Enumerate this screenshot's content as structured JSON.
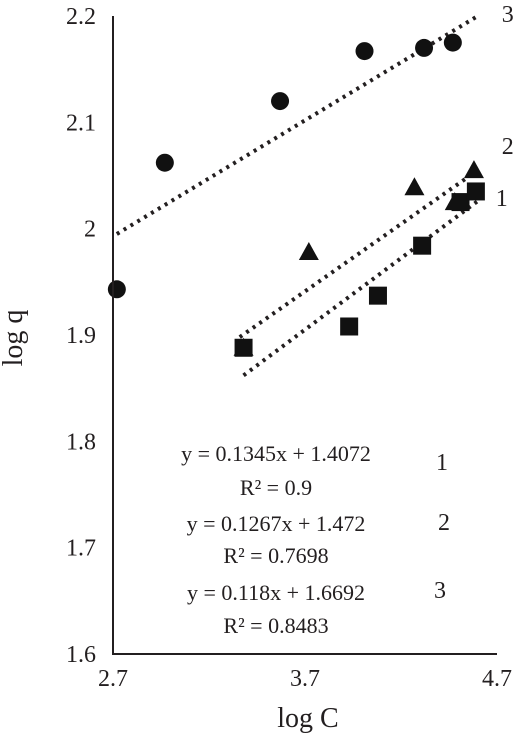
{
  "chart_data": {
    "type": "scatter",
    "xlabel": "log C",
    "ylabel": "log q",
    "xlim": [
      2.7,
      4.7
    ],
    "ylim": [
      1.6,
      2.2
    ],
    "xticks": [
      "2.7",
      "3.7",
      "4.7"
    ],
    "yticks": [
      "1.6",
      "1.7",
      "1.8",
      "1.9",
      "2",
      "2.1",
      "2.2"
    ],
    "grid": false,
    "legend": "none",
    "series": [
      {
        "label": "1",
        "marker": "square",
        "x": [
          3.38,
          3.93,
          4.08,
          4.31,
          4.51,
          4.59
        ],
        "y": [
          1.888,
          1.908,
          1.937,
          1.984,
          2.025,
          2.035
        ],
        "trendline": {
          "x": [
            3.38,
            4.6
          ],
          "y": [
            1.862,
            2.026
          ]
        }
      },
      {
        "label": "2",
        "marker": "triangle",
        "x": [
          3.38,
          3.72,
          4.27,
          4.48,
          4.58
        ],
        "y": [
          1.888,
          1.978,
          2.039,
          2.025,
          2.055
        ],
        "trendline": {
          "x": [
            3.36,
            4.6
          ],
          "y": [
            1.898,
            2.055
          ]
        }
      },
      {
        "label": "3",
        "marker": "circle",
        "x": [
          2.72,
          2.97,
          3.57,
          4.01,
          4.32,
          4.47
        ],
        "y": [
          1.943,
          2.062,
          2.12,
          2.167,
          2.17,
          2.175
        ],
        "trendline": {
          "x": [
            2.72,
            4.6
          ],
          "y": [
            1.995,
            2.2
          ]
        }
      }
    ],
    "annotations": [
      {
        "equation": "y = 0.1345x + 1.4072",
        "r2": "R² = 0.9",
        "number": "1"
      },
      {
        "equation": "y = 0.1267x + 1.472",
        "r2": "R² = 0.7698",
        "number": "2"
      },
      {
        "equation": "y = 0.118x + 1.6692",
        "r2": "R² = 0.8483",
        "number": "3"
      }
    ],
    "colors": {
      "ink": "#231f20",
      "marker": "#111111",
      "background": "#ffffff"
    }
  }
}
